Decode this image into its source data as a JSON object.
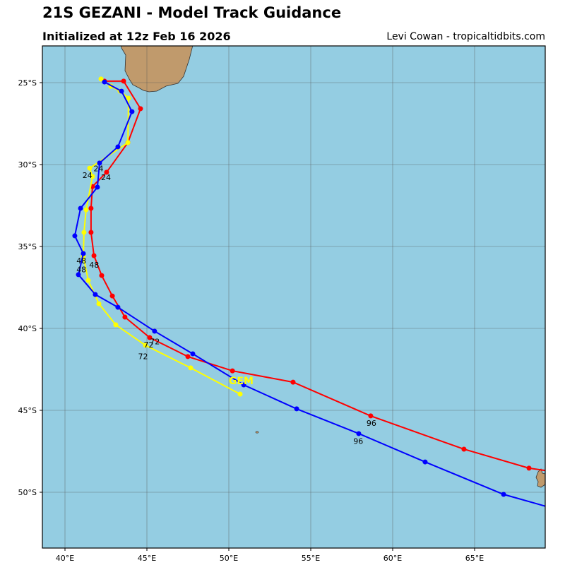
{
  "header": {
    "title": "21S GEZANI - Model Track Guidance",
    "subtitle": "Initialized at 12z Feb 16 2026",
    "credit": "Levi Cowan - tropicaltidbits.com"
  },
  "map": {
    "lon_range": [
      38.6,
      69.3
    ],
    "lat_range": [
      -53.4,
      -22.75
    ],
    "grid": true,
    "ocean_color": "#94cde2",
    "land_color": "#c09a6c",
    "x_ticks": [
      {
        "lon": 40,
        "label": "40°E"
      },
      {
        "lon": 45,
        "label": "45°E"
      },
      {
        "lon": 50,
        "label": "50°E"
      },
      {
        "lon": 55,
        "label": "55°E"
      },
      {
        "lon": 60,
        "label": "60°E"
      },
      {
        "lon": 65,
        "label": "65°E"
      }
    ],
    "y_ticks": [
      {
        "lat": -25,
        "label": "25°S"
      },
      {
        "lat": -30,
        "label": "30°S"
      },
      {
        "lat": -35,
        "label": "35°S"
      },
      {
        "lat": -40,
        "label": "40°S"
      },
      {
        "lat": -45,
        "label": "45°S"
      },
      {
        "lat": -50,
        "label": "50°S"
      }
    ]
  },
  "tracks": [
    {
      "color": "#ff0000",
      "points": [
        [
          42.41,
          -24.91
        ],
        [
          43.58,
          -24.91
        ],
        [
          44.61,
          -26.59
        ],
        [
          43.84,
          -28.66
        ],
        [
          42.54,
          -30.47
        ],
        [
          41.68,
          -31.34
        ],
        [
          41.59,
          -32.67
        ],
        [
          41.59,
          -34.14
        ],
        [
          41.77,
          -35.56
        ],
        [
          42.24,
          -36.77
        ],
        [
          42.89,
          -38.02
        ],
        [
          43.66,
          -39.31
        ],
        [
          45.17,
          -40.56
        ],
        [
          47.5,
          -41.72
        ],
        [
          50.22,
          -42.59
        ],
        [
          53.92,
          -43.28
        ],
        [
          58.66,
          -45.34
        ],
        [
          64.35,
          -47.37
        ],
        [
          68.32,
          -48.53
        ],
        [
          70.2,
          -48.8
        ]
      ]
    },
    {
      "color": "#ffff00",
      "points": [
        [
          42.2,
          -24.78
        ],
        [
          42.8,
          -25.22
        ],
        [
          43.36,
          -25.52
        ],
        [
          43.88,
          -25.95
        ],
        [
          43.84,
          -28.66
        ],
        [
          41.51,
          -30.22
        ],
        [
          41.68,
          -30.73
        ],
        [
          41.29,
          -32.76
        ],
        [
          41.16,
          -34.14
        ],
        [
          41.12,
          -35.6
        ],
        [
          41.42,
          -37.07
        ],
        [
          42.07,
          -38.49
        ],
        [
          43.1,
          -39.78
        ],
        [
          44.91,
          -41.03
        ],
        [
          47.67,
          -42.41
        ],
        [
          50.69,
          -44.01
        ]
      ]
    },
    {
      "color": "#0000ff",
      "points": [
        [
          42.41,
          -24.96
        ],
        [
          43.45,
          -25.52
        ],
        [
          44.09,
          -26.77
        ],
        [
          43.23,
          -28.92
        ],
        [
          42.11,
          -29.91
        ],
        [
          41.98,
          -31.38
        ],
        [
          40.95,
          -32.67
        ],
        [
          40.6,
          -34.35
        ],
        [
          41.12,
          -35.43
        ],
        [
          40.82,
          -36.72
        ],
        [
          41.85,
          -37.93
        ],
        [
          43.23,
          -38.71
        ],
        [
          45.47,
          -40.17
        ],
        [
          47.8,
          -41.55
        ],
        [
          50.91,
          -43.45
        ],
        [
          54.14,
          -44.91
        ],
        [
          57.93,
          -46.42
        ],
        [
          61.98,
          -48.15
        ],
        [
          66.77,
          -50.13
        ],
        [
          70.2,
          -51.1
        ]
      ]
    }
  ],
  "hour_labels": [
    {
      "text": "24",
      "lon": 41.5,
      "lat": -30.7
    },
    {
      "text": "24",
      "lon": 42.05,
      "lat": -30.4
    },
    {
      "text": "24",
      "lon": 42.5,
      "lat": -30.95
    },
    {
      "text": "48",
      "lon": 41.0,
      "lat": -36.2
    },
    {
      "text": "48",
      "lon": 41.0,
      "lat": -36.4
    },
    {
      "text": "48",
      "lon": 41.65,
      "lat": -36.3
    },
    {
      "text": "72",
      "lon": 45.4,
      "lat": -40.85
    },
    {
      "text": "72",
      "lon": 45.15,
      "lat": -41.2
    },
    {
      "text": "72",
      "lon": 44.85,
      "lat": -41.7
    },
    {
      "text": "96",
      "lon": 58.7,
      "lat": -45.95
    },
    {
      "text": "96",
      "lon": 57.9,
      "lat": -47.05
    }
  ],
  "model_labels": [
    {
      "text": "GEM",
      "lon": 50.75,
      "lat": -43.4,
      "color": "#ffff00"
    }
  ]
}
